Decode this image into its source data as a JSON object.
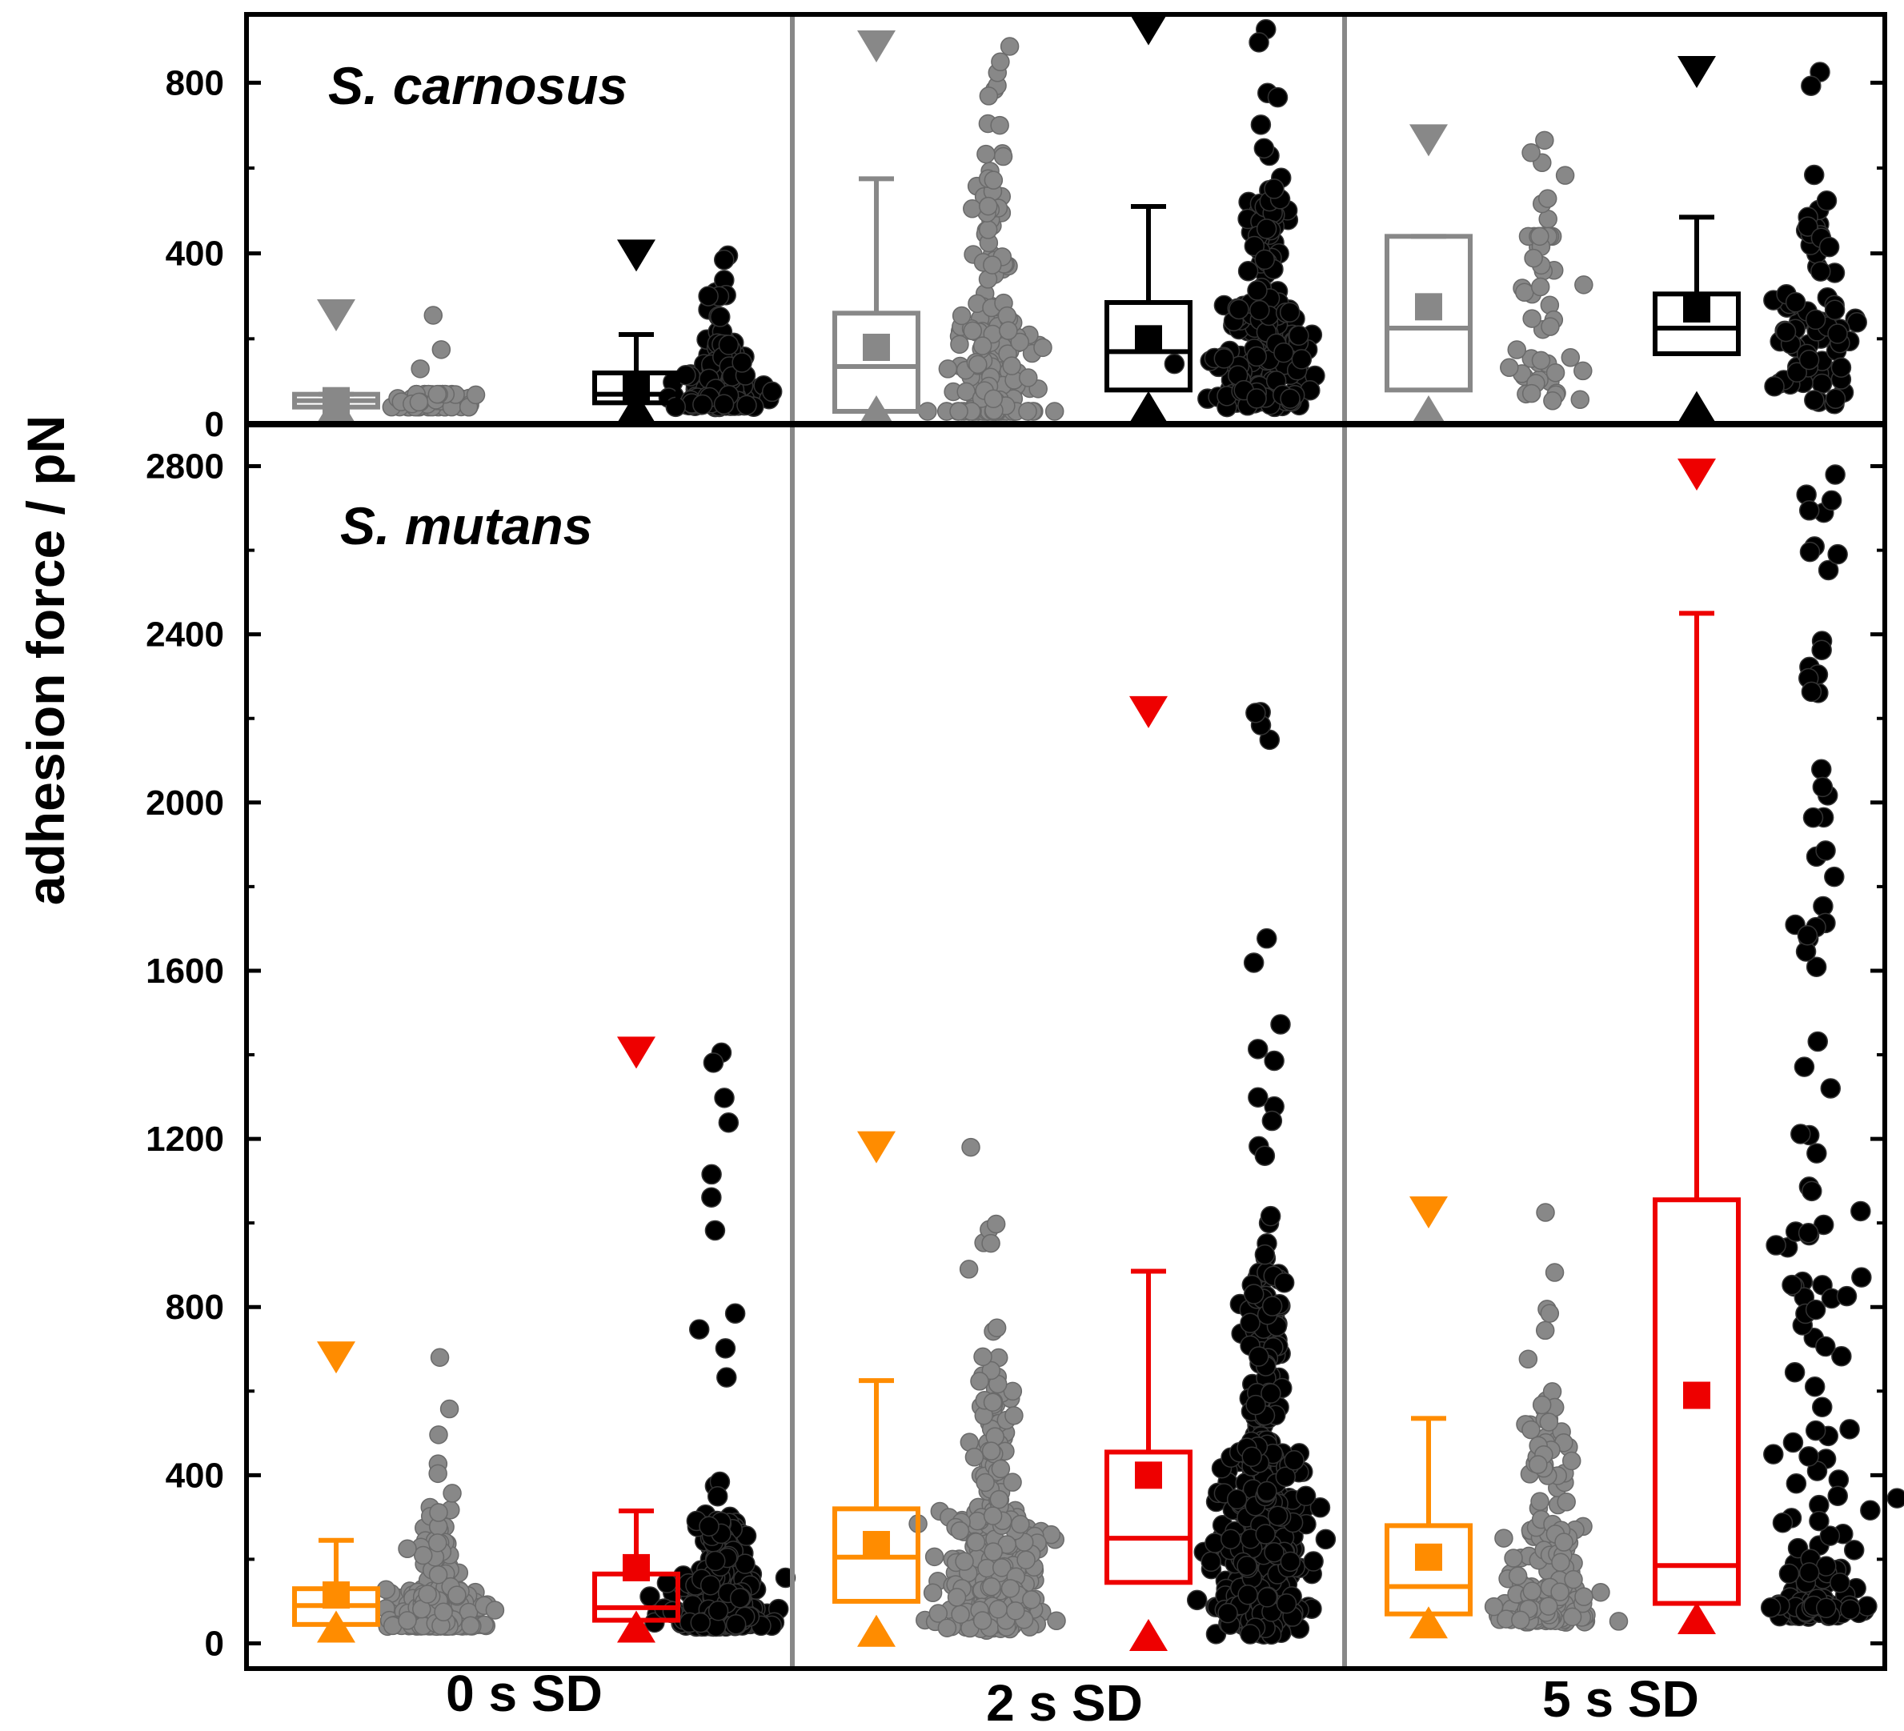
{
  "chart_data": {
    "type": "box-scatter",
    "ylabel": "adhesion force / pN",
    "categories": [
      "0 s SD",
      "2 s SD",
      "5 s SD"
    ],
    "colors": {
      "gray": "#888888",
      "black": "#000000",
      "orange": "#ff8c00",
      "red": "#ee0000"
    },
    "panels": [
      {
        "id": "top",
        "title": "S. carnosus",
        "ylim": [
          0,
          960
        ],
        "yticks": [
          0,
          400,
          800
        ],
        "ytick_labels": [
          "0",
          "400",
          "800"
        ],
        "groups": [
          {
            "category": "0 s SD",
            "series": "A",
            "color": "gray",
            "min": 40,
            "q1": 40,
            "median": 55,
            "q3": 70,
            "max": 70,
            "mean": 55,
            "min_marker": 40,
            "max_marker": 255,
            "n": 70
          },
          {
            "category": "0 s SD",
            "series": "B",
            "color": "black",
            "min": 40,
            "q1": 50,
            "median": 70,
            "q3": 120,
            "max": 210,
            "mean": 85,
            "min_marker": 40,
            "max_marker": 395,
            "n": 140
          },
          {
            "category": "2 s SD",
            "series": "A",
            "color": "gray",
            "min": 30,
            "q1": 30,
            "median": 135,
            "q3": 260,
            "max": 575,
            "mean": 180,
            "min_marker": 30,
            "max_marker": 885,
            "n": 200
          },
          {
            "category": "2 s SD",
            "series": "B",
            "color": "black",
            "min": 80,
            "q1": 80,
            "median": 170,
            "q3": 285,
            "max": 510,
            "mean": 200,
            "min_marker": 40,
            "max_marker": 925,
            "n": 200
          },
          {
            "category": "5 s SD",
            "series": "A",
            "color": "gray",
            "min": 80,
            "q1": 80,
            "median": 225,
            "q3": 440,
            "max": 440,
            "mean": 275,
            "min_marker": 30,
            "max_marker": 665,
            "n": 55
          },
          {
            "category": "5 s SD",
            "series": "B",
            "color": "black",
            "min": 165,
            "q1": 165,
            "median": 225,
            "q3": 305,
            "max": 485,
            "mean": 270,
            "min_marker": 40,
            "max_marker": 825,
            "n": 75
          }
        ]
      },
      {
        "id": "bottom",
        "title": "S. mutans",
        "ylim": [
          -60,
          2900
        ],
        "yticks": [
          0,
          400,
          800,
          1200,
          1600,
          2000,
          2400,
          2800
        ],
        "ytick_labels": [
          "0",
          "400",
          "800",
          "1200",
          "1600",
          "2000",
          "2400",
          "2800"
        ],
        "groups": [
          {
            "category": "0 s SD",
            "series": "A",
            "color": "orange",
            "min": 45,
            "q1": 45,
            "median": 90,
            "q3": 130,
            "max": 245,
            "mean": 115,
            "min_marker": 40,
            "max_marker": 680,
            "n": 260
          },
          {
            "category": "0 s SD",
            "series": "B",
            "color": "red",
            "min": 55,
            "q1": 55,
            "median": 85,
            "q3": 165,
            "max": 315,
            "mean": 180,
            "min_marker": 40,
            "max_marker": 1405,
            "n": 360
          },
          {
            "category": "2 s SD",
            "series": "A",
            "color": "orange",
            "min": 100,
            "q1": 100,
            "median": 205,
            "q3": 320,
            "max": 625,
            "mean": 235,
            "min_marker": 30,
            "max_marker": 1180,
            "n": 300
          },
          {
            "category": "2 s SD",
            "series": "B",
            "color": "red",
            "min": 145,
            "q1": 145,
            "median": 250,
            "q3": 455,
            "max": 885,
            "mean": 400,
            "min_marker": 20,
            "max_marker": 2215,
            "n": 420
          },
          {
            "category": "5 s SD",
            "series": "A",
            "color": "orange",
            "min": 70,
            "q1": 70,
            "median": 135,
            "q3": 280,
            "max": 535,
            "mean": 205,
            "min_marker": 50,
            "max_marker": 1025,
            "n": 200
          },
          {
            "category": "5 s SD",
            "series": "B",
            "color": "red",
            "min": 95,
            "q1": 95,
            "median": 185,
            "q3": 1055,
            "max": 2450,
            "mean": 590,
            "min_marker": 60,
            "max_marker": 2780,
            "n": 170
          }
        ]
      }
    ]
  }
}
